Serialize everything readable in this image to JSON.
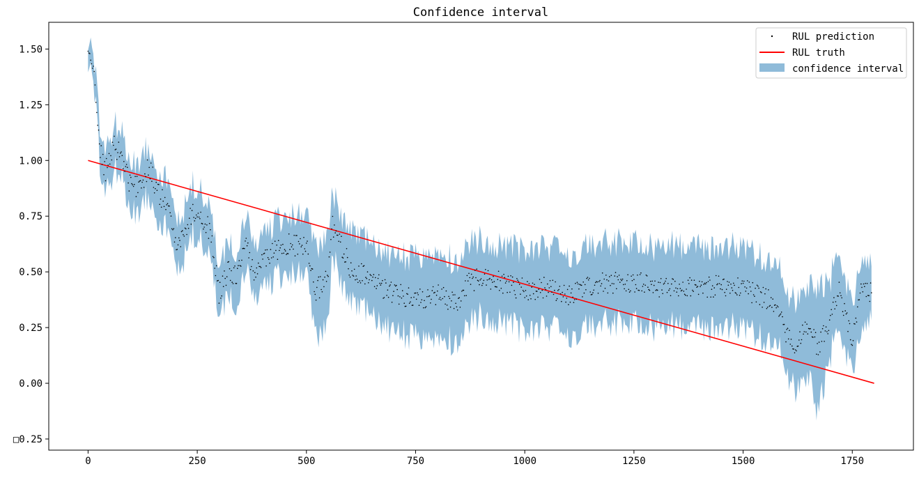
{
  "chart_data": {
    "type": "line",
    "title": "Confidence interval",
    "xlabel": "",
    "ylabel": "",
    "xlim": [
      -90,
      1890
    ],
    "ylim": [
      -0.3,
      1.62
    ],
    "x_ticks": [
      0,
      250,
      500,
      750,
      1000,
      1250,
      1500,
      1750
    ],
    "x_tick_labels": [
      "0",
      "250",
      "500",
      "750",
      "1000",
      "1250",
      "1500",
      "1750"
    ],
    "y_ticks": [
      1.5,
      1.25,
      1.0,
      0.75,
      0.5,
      0.25,
      0.0,
      -0.25
    ],
    "y_tick_labels": [
      "1.50",
      "1.25",
      "1.00",
      "0.75",
      "0.50",
      "0.25",
      "0.00",
      "□0.25"
    ],
    "grid": false,
    "legend_position": "top-right",
    "colors": {
      "prediction": "#000000",
      "truth": "#ff0000",
      "band": "#1f77b4"
    },
    "series": [
      {
        "name": "RUL prediction",
        "kind": "points",
        "x": [
          0,
          10,
          20,
          25,
          30,
          40,
          50,
          60,
          70,
          80,
          100,
          120,
          140,
          160,
          180,
          200,
          220,
          240,
          260,
          280,
          300,
          320,
          340,
          360,
          380,
          400,
          450,
          500,
          520,
          550,
          560,
          600,
          650,
          700,
          750,
          800,
          850,
          870,
          900,
          950,
          1000,
          1050,
          1100,
          1150,
          1200,
          1250,
          1300,
          1350,
          1400,
          1450,
          1500,
          1550,
          1580,
          1600,
          1620,
          1650,
          1670,
          1700,
          1720,
          1750,
          1770,
          1795
        ],
        "y": [
          1.49,
          1.44,
          1.25,
          1.1,
          1.02,
          0.95,
          1.0,
          1.06,
          1.05,
          1.0,
          0.87,
          0.9,
          0.97,
          0.85,
          0.8,
          0.64,
          0.66,
          0.78,
          0.74,
          0.68,
          0.4,
          0.5,
          0.48,
          0.63,
          0.5,
          0.55,
          0.62,
          0.62,
          0.4,
          0.5,
          0.7,
          0.52,
          0.46,
          0.4,
          0.38,
          0.4,
          0.36,
          0.45,
          0.48,
          0.45,
          0.42,
          0.43,
          0.4,
          0.44,
          0.45,
          0.46,
          0.42,
          0.44,
          0.43,
          0.44,
          0.42,
          0.38,
          0.35,
          0.2,
          0.17,
          0.25,
          0.16,
          0.3,
          0.43,
          0.2,
          0.42,
          0.4
        ]
      },
      {
        "name": "RUL truth",
        "kind": "line",
        "x": [
          0,
          1800
        ],
        "y": [
          1.0,
          0.0
        ]
      },
      {
        "name": "confidence interval",
        "kind": "band",
        "x": [
          0,
          10,
          20,
          25,
          30,
          40,
          50,
          60,
          70,
          80,
          100,
          120,
          140,
          160,
          180,
          200,
          220,
          240,
          260,
          280,
          300,
          320,
          340,
          360,
          380,
          400,
          450,
          500,
          520,
          550,
          560,
          600,
          650,
          700,
          750,
          800,
          850,
          870,
          900,
          950,
          1000,
          1050,
          1100,
          1150,
          1200,
          1250,
          1300,
          1350,
          1400,
          1450,
          1500,
          1550,
          1580,
          1600,
          1620,
          1650,
          1670,
          1700,
          1720,
          1750,
          1770,
          1795
        ],
        "lower": [
          1.44,
          1.38,
          1.18,
          1.02,
          0.92,
          0.86,
          0.9,
          0.96,
          0.95,
          0.9,
          0.76,
          0.79,
          0.86,
          0.74,
          0.69,
          0.53,
          0.55,
          0.67,
          0.63,
          0.57,
          0.29,
          0.38,
          0.36,
          0.51,
          0.38,
          0.43,
          0.49,
          0.49,
          0.2,
          0.3,
          0.56,
          0.36,
          0.3,
          0.23,
          0.2,
          0.21,
          0.18,
          0.27,
          0.31,
          0.28,
          0.24,
          0.25,
          0.22,
          0.26,
          0.27,
          0.28,
          0.24,
          0.26,
          0.25,
          0.26,
          0.24,
          0.2,
          0.17,
          0.02,
          -0.03,
          0.05,
          -0.12,
          0.13,
          0.26,
          0.05,
          0.26,
          0.28
        ],
        "upper": [
          1.54,
          1.5,
          1.32,
          1.18,
          1.12,
          1.04,
          1.1,
          1.16,
          1.15,
          1.1,
          0.98,
          1.01,
          1.08,
          0.96,
          0.91,
          0.75,
          0.77,
          0.89,
          0.85,
          0.79,
          0.51,
          0.62,
          0.6,
          0.75,
          0.62,
          0.67,
          0.75,
          0.75,
          0.6,
          0.7,
          0.84,
          0.68,
          0.62,
          0.57,
          0.56,
          0.59,
          0.54,
          0.63,
          0.65,
          0.62,
          0.6,
          0.61,
          0.58,
          0.62,
          0.63,
          0.64,
          0.6,
          0.62,
          0.61,
          0.62,
          0.6,
          0.56,
          0.53,
          0.38,
          0.37,
          0.45,
          0.44,
          0.47,
          0.6,
          0.35,
          0.58,
          0.52
        ]
      }
    ]
  }
}
